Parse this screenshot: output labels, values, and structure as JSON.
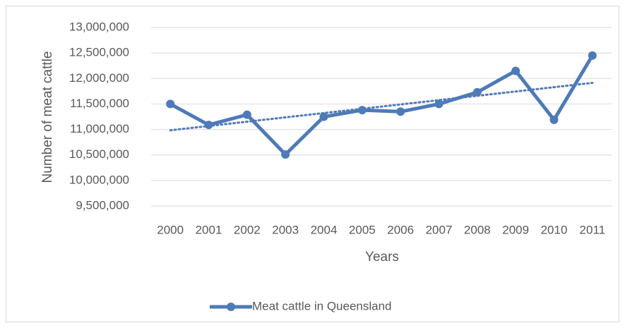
{
  "chart_data": {
    "type": "line",
    "x_label": "Years",
    "y_label": "Number of meat cattle",
    "categories": [
      "2000",
      "2001",
      "2002",
      "2003",
      "2004",
      "2005",
      "2006",
      "2007",
      "2008",
      "2009",
      "2010",
      "2011"
    ],
    "series": [
      {
        "name": "Meat cattle in Queensland",
        "color": "#4e7ab8",
        "values": [
          11500000,
          11090000,
          11290000,
          10510000,
          11250000,
          11380000,
          11350000,
          11500000,
          11730000,
          12150000,
          11190000,
          12450000
        ]
      }
    ],
    "ylim": [
      9500000,
      13000000
    ],
    "yticks": [
      {
        "value": 9500000,
        "label": "9,500,000"
      },
      {
        "value": 10000000,
        "label": "10,000,000"
      },
      {
        "value": 10500000,
        "label": "10,500,000"
      },
      {
        "value": 11000000,
        "label": "11,000,000"
      },
      {
        "value": 11500000,
        "label": "11,500,000"
      },
      {
        "value": 12000000,
        "label": "12,000,000"
      },
      {
        "value": 12500000,
        "label": "12,500,000"
      },
      {
        "value": 13000000,
        "label": "13,000,000"
      }
    ],
    "grid": true,
    "trendline": "linear",
    "legend": "bottom"
  }
}
